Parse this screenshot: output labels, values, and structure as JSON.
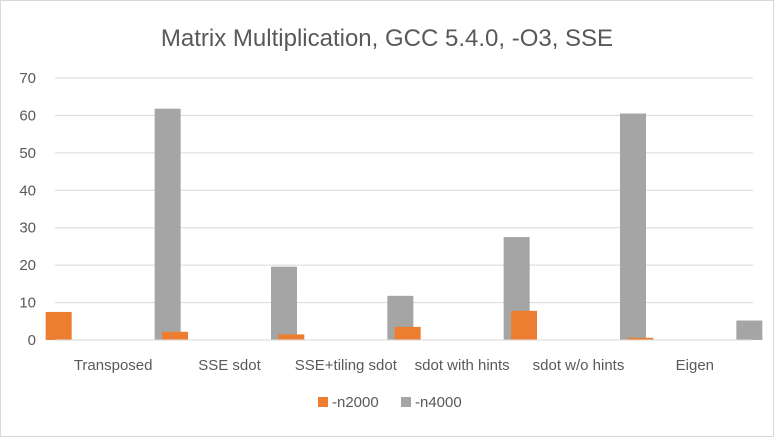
{
  "chart_data": {
    "type": "bar",
    "title": "Matrix Multiplication, GCC 5.4.0, -O3, SSE",
    "xlabel": "",
    "ylabel": "",
    "categories": [
      "Transposed",
      "SSE sdot",
      "SSE+tiling sdot",
      "sdot with hints",
      "sdot w/o hints",
      "Eigen"
    ],
    "series": [
      {
        "name": "-n2000",
        "color": "#ed7d31",
        "values": [
          7.5,
          2.2,
          1.5,
          3.5,
          7.8,
          0.6
        ]
      },
      {
        "name": "-n4000",
        "color": "#a5a5a5",
        "values": [
          61.8,
          19.6,
          11.8,
          27.5,
          60.5,
          5.2
        ]
      }
    ],
    "ylim": [
      0,
      70
    ],
    "yticks": [
      0,
      10,
      20,
      30,
      40,
      50,
      60,
      70
    ],
    "grid": true,
    "legend_position": "bottom"
  }
}
